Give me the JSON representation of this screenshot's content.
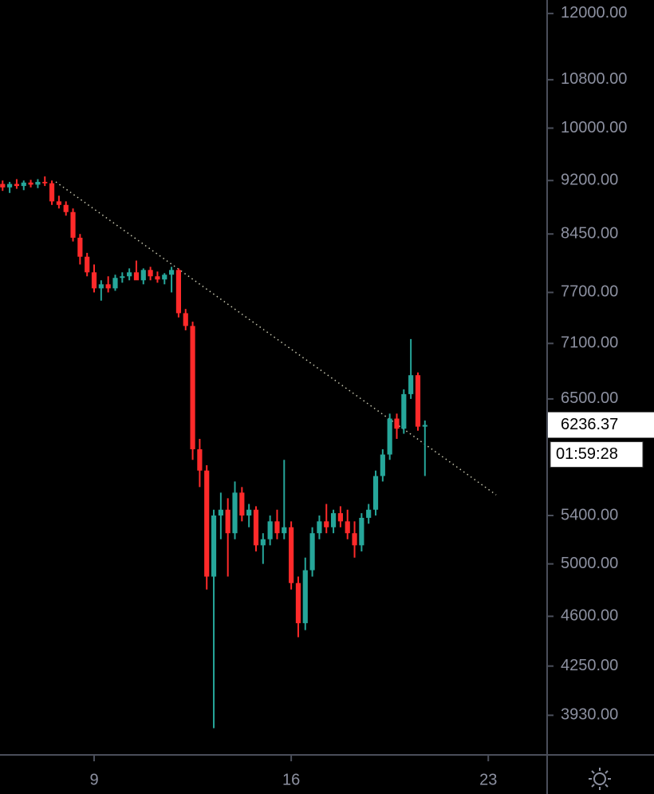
{
  "chart_data": {
    "type": "candlestick",
    "log_scale": true,
    "grid": false,
    "up_color": "#26a69a",
    "down_color": "#ff2a2a",
    "xlim": [
      5.657,
      25.09
    ],
    "xticks": [
      9,
      16,
      23
    ],
    "ylim": [
      3690,
      12260
    ],
    "yticks": [
      {
        "value": 12000,
        "label": "12000.00"
      },
      {
        "value": 10800,
        "label": "10800.00"
      },
      {
        "value": 10000,
        "label": "10000.00"
      },
      {
        "value": 9200,
        "label": "9200.00"
      },
      {
        "value": 8450,
        "label": "8450.00"
      },
      {
        "value": 7700,
        "label": "7700.00"
      },
      {
        "value": 7100,
        "label": "7100.00"
      },
      {
        "value": 6500,
        "label": "6500.00"
      },
      {
        "value": 5400,
        "label": "5400.00"
      },
      {
        "value": 5000,
        "label": "5000.00"
      },
      {
        "value": 4600,
        "label": "4600.00"
      },
      {
        "value": 4250,
        "label": "4250.00"
      },
      {
        "value": 3930,
        "label": "3930.00"
      }
    ],
    "x": [
      5.75,
      6,
      6.25,
      6.5,
      6.75,
      7,
      7.25,
      7.5,
      7.75,
      8,
      8.25,
      8.5,
      8.75,
      9,
      9.25,
      9.5,
      9.75,
      10,
      10.25,
      10.5,
      10.75,
      11,
      11.25,
      11.5,
      11.75,
      12,
      12.25,
      12.5,
      12.75,
      13,
      13.25,
      13.5,
      13.75,
      14,
      14.25,
      14.5,
      14.75,
      15,
      15.25,
      15.5,
      15.75,
      16,
      16.25,
      16.5,
      16.75,
      17,
      17.25,
      17.5,
      17.75,
      18,
      18.25,
      18.5,
      18.75,
      19,
      19.25,
      19.5,
      19.75,
      20,
      20.25,
      20.5,
      20.75
    ],
    "open": [
      9150,
      9100,
      9150,
      9120,
      9170,
      9140,
      9180,
      9160,
      8900,
      8850,
      8750,
      8400,
      8150,
      7950,
      7750,
      7800,
      7750,
      7880,
      7900,
      7950,
      7850,
      7980,
      7900,
      7860,
      7920,
      7980,
      7450,
      7300,
      6000,
      5800,
      4900,
      5400,
      5450,
      5250,
      5600,
      5400,
      5450,
      5150,
      5200,
      5350,
      5250,
      5300,
      4850,
      4550,
      4950,
      5250,
      5350,
      5300,
      5420,
      5350,
      5250,
      5150,
      5380,
      5450,
      5750,
      5950,
      6300,
      6200,
      6550,
      6750,
      6220
    ],
    "high": [
      9200,
      9180,
      9220,
      9200,
      9210,
      9220,
      9260,
      9200,
      8980,
      8900,
      8800,
      8450,
      8200,
      8050,
      7850,
      7900,
      7920,
      7950,
      8000,
      8100,
      8000,
      8020,
      7960,
      7940,
      8020,
      8000,
      7500,
      7350,
      6100,
      5850,
      5450,
      5600,
      5550,
      5700,
      5650,
      5500,
      5480,
      5250,
      5400,
      5450,
      5900,
      5350,
      4900,
      5050,
      5300,
      5400,
      5500,
      5450,
      5480,
      5450,
      5350,
      5420,
      5500,
      5800,
      6000,
      6350,
      6350,
      6600,
      7150,
      6780,
      6280
    ],
    "low": [
      9050,
      9020,
      9080,
      9060,
      9100,
      9090,
      9120,
      8850,
      8800,
      8700,
      8350,
      8050,
      7900,
      7700,
      7600,
      7700,
      7720,
      7820,
      7850,
      7900,
      7800,
      7850,
      7820,
      7800,
      7700,
      7400,
      7250,
      5900,
      5650,
      4800,
      3850,
      5200,
      4900,
      5200,
      5350,
      5300,
      5100,
      5000,
      5150,
      5200,
      5200,
      4800,
      4450,
      4500,
      4900,
      5200,
      5250,
      5250,
      5300,
      5200,
      5050,
      5100,
      5330,
      5400,
      5700,
      5900,
      6100,
      6150,
      6500,
      6180,
      5750
    ],
    "close": [
      9100,
      9150,
      9120,
      9170,
      9140,
      9180,
      9160,
      8900,
      8850,
      8750,
      8400,
      8150,
      7950,
      7750,
      7800,
      7750,
      7880,
      7900,
      7950,
      7850,
      7980,
      7900,
      7860,
      7920,
      7980,
      7450,
      7300,
      6000,
      5800,
      4900,
      5400,
      5450,
      5250,
      5600,
      5400,
      5450,
      5150,
      5200,
      5350,
      5250,
      5300,
      4850,
      4550,
      4950,
      5250,
      5350,
      5300,
      5420,
      5350,
      5250,
      5150,
      5380,
      5450,
      5750,
      5950,
      6300,
      6200,
      6550,
      6750,
      6220,
      6236.37
    ],
    "trendline": {
      "x": [
        7.64,
        23.28
      ],
      "y": [
        9180,
        5580
      ]
    },
    "countdown": "01:59:28"
  }
}
